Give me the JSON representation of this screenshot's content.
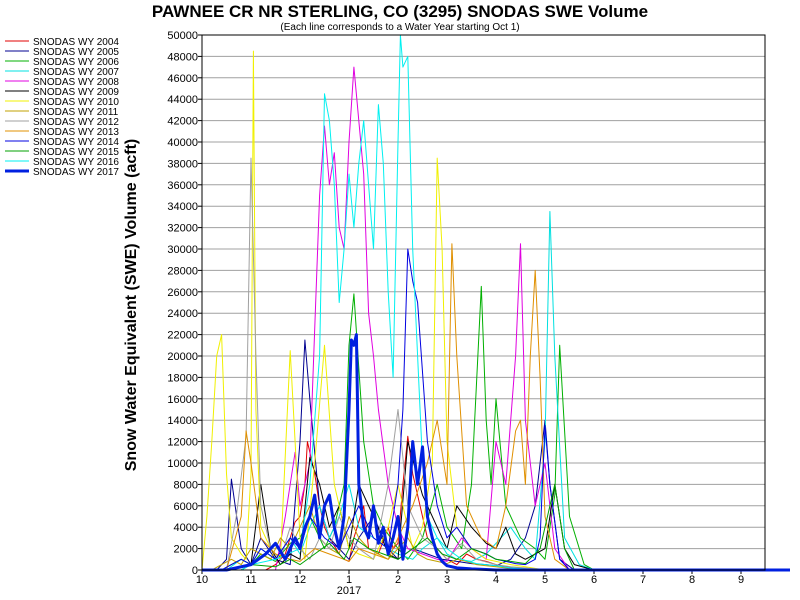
{
  "chart_data": {
    "type": "line",
    "title": "PAWNEE CR NR STERLING, CO (3295) SNODAS SWE Volume",
    "subtitle": "(Each line corresponds to a Water Year starting Oct 1)",
    "ylabel": "Snow Water Equivalent (SWE) Volume (acft)",
    "xlabel": "",
    "ylim": [
      0,
      50000
    ],
    "yticks": [
      0,
      2000,
      4000,
      6000,
      8000,
      10000,
      12000,
      14000,
      16000,
      18000,
      20000,
      22000,
      24000,
      26000,
      28000,
      30000,
      32000,
      34000,
      36000,
      38000,
      40000,
      42000,
      44000,
      46000,
      48000,
      50000
    ],
    "xlim": [
      0,
      12
    ],
    "xticks": [
      {
        "pos": 0,
        "label": "10"
      },
      {
        "pos": 1,
        "label": "11"
      },
      {
        "pos": 2,
        "label": "12"
      },
      {
        "pos": 3,
        "label": "1"
      },
      {
        "pos": 4,
        "label": "2"
      },
      {
        "pos": 5,
        "label": "3"
      },
      {
        "pos": 6,
        "label": "4"
      },
      {
        "pos": 7,
        "label": "5"
      },
      {
        "pos": 8,
        "label": "6"
      },
      {
        "pos": 9,
        "label": "7"
      },
      {
        "pos": 10,
        "label": "8"
      },
      {
        "pos": 11,
        "label": "9"
      }
    ],
    "year_label": {
      "pos": 3,
      "label": "2017"
    },
    "grid": true,
    "legend_position": "left",
    "series": [
      {
        "name": "SNODAS WY 2004",
        "color": "#e00000",
        "width": 1,
        "x": [
          0.0,
          1.0,
          1.3,
          1.5,
          1.7,
          1.8,
          1.9,
          2.0,
          2.1,
          2.15,
          2.3,
          2.4,
          2.5,
          2.6,
          2.8,
          2.9,
          3.0,
          3.1,
          3.3,
          3.4,
          3.6,
          3.8,
          3.9,
          4.0,
          4.1,
          4.2,
          4.3,
          4.5,
          4.6,
          4.8,
          5.0,
          5.2,
          5.4,
          5.6,
          5.8,
          6.0,
          6.2,
          6.5,
          6.8,
          7.0,
          7.2,
          7.5,
          12.0
        ],
        "y": [
          0,
          0,
          0,
          500,
          1500,
          3000,
          4500,
          5000,
          8000,
          12000,
          9000,
          6000,
          4000,
          3000,
          1500,
          1000,
          800,
          3000,
          6000,
          2000,
          1500,
          4000,
          2000,
          2500,
          8000,
          12500,
          9000,
          5000,
          3000,
          2000,
          1000,
          500,
          1500,
          1000,
          800,
          500,
          300,
          200,
          0,
          0,
          0,
          0,
          0
        ]
      },
      {
        "name": "SNODAS WY 2005",
        "color": "#000090",
        "width": 1,
        "x": [
          0.0,
          0.3,
          0.5,
          0.6,
          0.8,
          1.0,
          1.2,
          1.5,
          1.8,
          2.0,
          2.1,
          2.2,
          2.4,
          2.6,
          2.8,
          3.0,
          3.2,
          3.5,
          3.8,
          4.0,
          4.3,
          4.6,
          4.9,
          5.2,
          5.5,
          5.8,
          6.0,
          6.3,
          6.6,
          6.8,
          7.0,
          7.1,
          7.3,
          7.6,
          8.0,
          12.0
        ],
        "y": [
          0,
          0,
          1000,
          8500,
          2000,
          500,
          3000,
          1000,
          500,
          12000,
          21500,
          16000,
          6000,
          3000,
          2000,
          1000,
          3000,
          5000,
          2000,
          1000,
          2000,
          1500,
          1000,
          800,
          600,
          500,
          400,
          1000,
          3000,
          6000,
          14000,
          8000,
          1000,
          0,
          0,
          0
        ]
      },
      {
        "name": "SNODAS WY 2006",
        "color": "#00b000",
        "width": 1,
        "x": [
          0.0,
          0.4,
          0.6,
          0.8,
          1.0,
          1.2,
          1.5,
          1.8,
          2.0,
          2.2,
          2.5,
          2.7,
          2.9,
          3.0,
          3.1,
          3.3,
          3.5,
          3.7,
          4.0,
          4.2,
          4.5,
          4.8,
          5.0,
          5.3,
          5.5,
          5.7,
          5.8,
          5.9,
          6.0,
          6.2,
          6.5,
          6.8,
          7.0,
          7.2,
          7.3,
          7.5,
          7.8,
          8.0,
          12.0
        ],
        "y": [
          0,
          0,
          500,
          1000,
          500,
          1500,
          800,
          2500,
          3000,
          5000,
          2000,
          4000,
          8000,
          21000,
          25800,
          12000,
          6000,
          4000,
          2000,
          1000,
          3000,
          8000,
          4000,
          2000,
          8000,
          26500,
          14000,
          8000,
          16000,
          6000,
          3000,
          2000,
          1000,
          7000,
          21000,
          5000,
          500,
          0,
          0
        ]
      },
      {
        "name": "SNODAS WY 2007",
        "color": "#00e0e0",
        "width": 1,
        "x": [
          0.0,
          0.5,
          0.8,
          1.0,
          1.2,
          1.5,
          1.8,
          2.0,
          2.2,
          2.4,
          2.6,
          2.8,
          3.0,
          3.2,
          3.5,
          3.8,
          4.0,
          4.3,
          4.5,
          4.8,
          5.0,
          5.2,
          5.5,
          5.8,
          6.0,
          6.3,
          6.6,
          6.8,
          7.0,
          7.1,
          7.2,
          7.4,
          7.7,
          8.0,
          12.0
        ],
        "y": [
          0,
          0,
          1000,
          500,
          2000,
          1000,
          3000,
          1500,
          4000,
          6000,
          3000,
          5000,
          8000,
          4000,
          3000,
          2000,
          1500,
          1000,
          2000,
          3000,
          1500,
          1000,
          800,
          1500,
          2500,
          4000,
          2000,
          1000,
          12000,
          33500,
          20000,
          3000,
          500,
          0,
          0
        ]
      },
      {
        "name": "SNODAS WY 2008",
        "color": "#e000e0",
        "width": 1,
        "x": [
          0.0,
          1.5,
          1.7,
          1.9,
          2.0,
          2.2,
          2.4,
          2.5,
          2.6,
          2.7,
          2.8,
          2.9,
          3.0,
          3.1,
          3.2,
          3.3,
          3.4,
          3.5,
          3.6,
          3.8,
          4.0,
          4.2,
          4.5,
          4.8,
          5.0,
          5.3,
          5.5,
          5.8,
          6.0,
          6.2,
          6.4,
          6.5,
          6.6,
          6.8,
          7.0,
          7.2,
          7.5,
          12.0
        ],
        "y": [
          0,
          0,
          5000,
          11000,
          6000,
          10000,
          35000,
          41500,
          36000,
          39000,
          32000,
          30000,
          40000,
          47000,
          42000,
          37000,
          24000,
          20000,
          15000,
          8000,
          4000,
          2000,
          1500,
          1000,
          800,
          3000,
          2000,
          1000,
          12000,
          8000,
          20000,
          30500,
          14000,
          6000,
          10000,
          2000,
          0,
          0
        ]
      },
      {
        "name": "SNODAS WY 2009",
        "color": "#000000",
        "width": 1,
        "x": [
          0.0,
          0.8,
          1.0,
          1.2,
          1.4,
          1.6,
          1.8,
          2.0,
          2.2,
          2.4,
          2.6,
          2.8,
          3.0,
          3.2,
          3.5,
          3.8,
          4.0,
          4.2,
          4.5,
          4.8,
          5.0,
          5.2,
          5.5,
          5.8,
          6.0,
          6.2,
          6.4,
          6.6,
          6.8,
          7.0,
          7.2,
          7.4,
          7.6,
          8.0,
          12.0
        ],
        "y": [
          0,
          0,
          500,
          8000,
          2000,
          500,
          1500,
          1000,
          10500,
          8000,
          4000,
          6000,
          2000,
          8000,
          5000,
          1500,
          1000,
          12000,
          7000,
          4000,
          2000,
          6000,
          4000,
          2500,
          2000,
          4000,
          1500,
          1000,
          1500,
          2000,
          8000,
          2000,
          500,
          0,
          0
        ]
      },
      {
        "name": "SNODAS WY 2010",
        "color": "#f0f000",
        "width": 1,
        "x": [
          0.0,
          0.1,
          0.2,
          0.3,
          0.4,
          0.5,
          0.6,
          0.8,
          0.9,
          1.0,
          1.05,
          1.1,
          1.2,
          1.4,
          1.6,
          1.8,
          1.9,
          2.0,
          2.1,
          2.3,
          2.5,
          2.7,
          2.9,
          3.0,
          3.2,
          3.5,
          3.8,
          4.0,
          4.3,
          4.5,
          4.7,
          4.8,
          4.9,
          5.0,
          5.2,
          5.5,
          5.8,
          6.0,
          6.3,
          6.6,
          7.0,
          12.0
        ],
        "y": [
          0,
          5000,
          12000,
          20000,
          22000,
          9000,
          3000,
          1500,
          1000,
          9000,
          48500,
          15000,
          4000,
          2000,
          1000,
          20500,
          12000,
          3000,
          1000,
          10000,
          21000,
          8000,
          4000,
          2000,
          1500,
          1000,
          4000,
          8000,
          2000,
          4000,
          10000,
          38500,
          30000,
          12000,
          4000,
          2000,
          1000,
          800,
          500,
          300,
          0,
          0
        ]
      },
      {
        "name": "SNODAS WY 2011",
        "color": "#c0a000",
        "width": 1,
        "x": [
          0.0,
          0.2,
          0.4,
          0.6,
          0.8,
          1.0,
          1.2,
          1.4,
          1.6,
          1.8,
          2.0,
          2.2,
          2.4,
          2.6,
          2.8,
          3.0,
          3.2,
          3.4,
          3.6,
          3.8,
          4.0,
          4.2,
          4.4,
          4.6,
          4.8,
          5.0,
          5.2,
          5.4,
          5.6,
          5.8,
          6.0,
          6.2,
          6.4,
          6.6,
          6.8,
          7.0,
          7.3,
          12.0
        ],
        "y": [
          0,
          0,
          500,
          1000,
          500,
          2000,
          1500,
          1000,
          3000,
          2000,
          4000,
          6000,
          3000,
          2000,
          1500,
          5000,
          3000,
          2000,
          1500,
          1000,
          2000,
          3000,
          1500,
          1000,
          800,
          600,
          1000,
          800,
          500,
          400,
          300,
          200,
          150,
          100,
          50,
          0,
          0,
          0
        ]
      },
      {
        "name": "SNODAS WY 2012",
        "color": "#a0a0a0",
        "width": 1,
        "x": [
          0.0,
          0.5,
          0.7,
          0.9,
          1.0,
          1.1,
          1.2,
          1.4,
          1.6,
          1.8,
          2.0,
          2.2,
          2.4,
          2.6,
          2.8,
          3.0,
          3.2,
          3.5,
          3.8,
          4.0,
          4.2,
          4.5,
          4.8,
          5.0,
          5.3,
          5.6,
          6.0,
          6.3,
          6.6,
          7.0,
          12.0
        ],
        "y": [
          0,
          0,
          5000,
          12500,
          38500,
          20000,
          6000,
          2000,
          1000,
          4000,
          2000,
          1000,
          3000,
          2000,
          5000,
          3000,
          2000,
          1000,
          8000,
          15000,
          6000,
          3000,
          2000,
          1000,
          2500,
          1000,
          500,
          300,
          200,
          0,
          0
        ]
      },
      {
        "name": "SNODAS WY 2013",
        "color": "#e09000",
        "width": 1,
        "x": [
          0.0,
          0.5,
          0.8,
          0.9,
          1.0,
          1.2,
          1.5,
          1.8,
          2.0,
          2.3,
          2.6,
          2.9,
          3.0,
          3.2,
          3.5,
          3.8,
          4.0,
          4.3,
          4.6,
          4.8,
          5.0,
          5.1,
          5.2,
          5.4,
          5.7,
          6.0,
          6.2,
          6.4,
          6.5,
          6.6,
          6.7,
          6.8,
          6.9,
          7.0,
          7.2,
          7.5,
          12.0
        ],
        "y": [
          0,
          0,
          5000,
          13000,
          10000,
          3000,
          1500,
          1000,
          800,
          2000,
          1500,
          1000,
          800,
          2000,
          1500,
          1000,
          3000,
          6000,
          10000,
          14000,
          8000,
          30500,
          20000,
          6000,
          3000,
          2000,
          6000,
          13000,
          14000,
          8000,
          20000,
          28000,
          18000,
          5000,
          1000,
          0,
          0
        ]
      },
      {
        "name": "SNODAS WY 2014",
        "color": "#0000e0",
        "width": 1,
        "x": [
          0.0,
          0.4,
          0.6,
          0.8,
          1.0,
          1.2,
          1.5,
          1.8,
          2.0,
          2.2,
          2.5,
          2.8,
          3.0,
          3.2,
          3.5,
          3.8,
          3.9,
          4.0,
          4.1,
          4.2,
          4.3,
          4.4,
          4.6,
          4.8,
          5.0,
          5.2,
          5.5,
          5.8,
          6.0,
          6.2,
          6.4,
          6.6,
          6.8,
          6.9,
          7.0,
          7.1,
          7.3,
          7.5,
          12.0
        ],
        "y": [
          0,
          0,
          500,
          1000,
          500,
          2000,
          1000,
          3000,
          2000,
          5000,
          3000,
          2000,
          4000,
          6000,
          3000,
          2000,
          5000,
          8000,
          15000,
          30000,
          27000,
          25000,
          12000,
          6000,
          3000,
          4000,
          2000,
          1500,
          1000,
          800,
          600,
          500,
          1000,
          3000,
          13500,
          8000,
          1000,
          0,
          0
        ]
      },
      {
        "name": "SNODAS WY 2015",
        "color": "#00a000",
        "width": 1,
        "x": [
          0.0,
          0.5,
          1.0,
          1.5,
          1.8,
          2.0,
          2.3,
          2.6,
          2.9,
          3.1,
          3.4,
          3.7,
          4.0,
          4.3,
          4.6,
          4.9,
          5.2,
          5.5,
          5.8,
          6.0,
          6.3,
          6.6,
          6.9,
          7.2,
          7.4,
          7.6,
          12.0
        ],
        "y": [
          0,
          0,
          500,
          300,
          1000,
          500,
          1500,
          2500,
          1000,
          3000,
          2000,
          1500,
          1000,
          2000,
          3000,
          1500,
          1000,
          2000,
          1500,
          1000,
          800,
          600,
          2000,
          8000,
          2000,
          0,
          0
        ]
      },
      {
        "name": "SNODAS WY 2016",
        "color": "#00f0f0",
        "width": 1,
        "x": [
          0.0,
          0.8,
          1.0,
          1.5,
          2.0,
          2.2,
          2.4,
          2.5,
          2.6,
          2.7,
          2.8,
          2.9,
          3.0,
          3.1,
          3.2,
          3.3,
          3.4,
          3.5,
          3.6,
          3.7,
          3.8,
          3.9,
          4.0,
          4.05,
          4.1,
          4.2,
          4.3,
          4.4,
          4.5,
          4.6,
          4.8,
          5.0,
          5.3,
          5.6,
          6.0,
          6.3,
          6.6,
          7.0,
          12.0
        ],
        "y": [
          0,
          0,
          500,
          1000,
          2000,
          8000,
          20000,
          44500,
          42000,
          36000,
          25000,
          30000,
          37000,
          32000,
          38000,
          42000,
          36000,
          30000,
          43500,
          38000,
          26000,
          18000,
          40000,
          50000,
          47000,
          48000,
          30000,
          20000,
          10000,
          5000,
          3000,
          2000,
          1000,
          600,
          400,
          200,
          100,
          0,
          0
        ]
      },
      {
        "name": "SNODAS WY 2017",
        "color": "#0020e0",
        "width": 3,
        "x": [
          0.0,
          0.5,
          1.0,
          1.3,
          1.5,
          1.7,
          1.9,
          2.0,
          2.1,
          2.2,
          2.3,
          2.4,
          2.5,
          2.6,
          2.7,
          2.8,
          2.9,
          3.0,
          3.05,
          3.1,
          3.15,
          3.2,
          3.3,
          3.4,
          3.5,
          3.6,
          3.7,
          3.8,
          3.9,
          4.0,
          4.1,
          4.2,
          4.3,
          4.4,
          4.5,
          4.6,
          4.7,
          4.8,
          4.9,
          5.0,
          5.2,
          5.5,
          5.8,
          6.0,
          6.5,
          12.0
        ],
        "y": [
          0,
          0,
          500,
          1500,
          2500,
          1000,
          3000,
          2000,
          4000,
          5000,
          7000,
          3000,
          6000,
          7000,
          4000,
          2000,
          5000,
          15000,
          21500,
          21000,
          22000,
          8000,
          4000,
          3000,
          6000,
          2500,
          4000,
          1500,
          3000,
          5000,
          1000,
          4000,
          12000,
          8000,
          11500,
          5000,
          3000,
          1500,
          800,
          400,
          200,
          100,
          50,
          0,
          0,
          0
        ]
      }
    ]
  }
}
